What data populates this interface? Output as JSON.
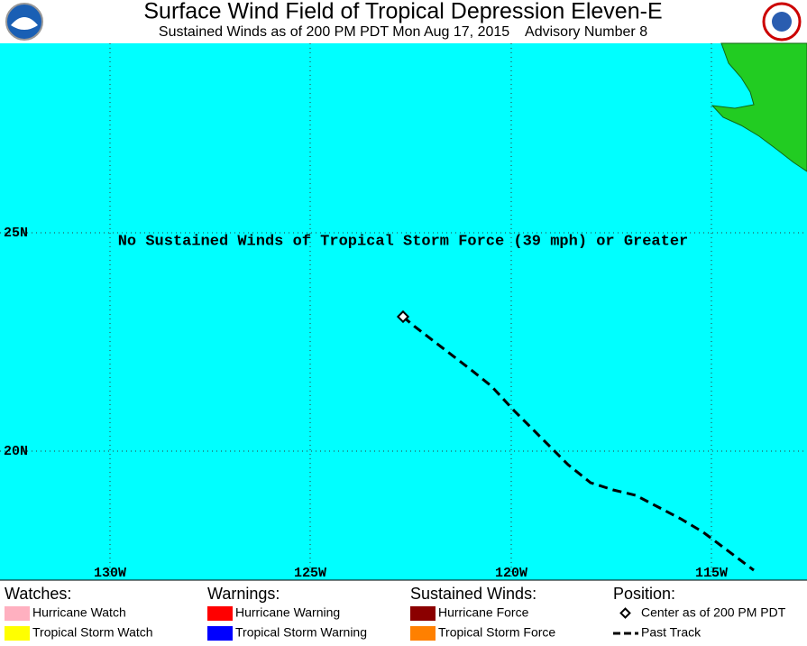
{
  "header": {
    "title": "Surface Wind Field of Tropical Depression Eleven-E",
    "subtitle": "Sustained Winds as of 200 PM PDT Mon Aug 17, 2015    Advisory Number 8"
  },
  "map": {
    "annotation": "No Sustained Winds of Tropical Storm Force (39 mph) or Greater",
    "lon_labels": [
      "130W",
      "125W",
      "120W",
      "115W"
    ],
    "lat_labels": [
      "25N",
      "20N"
    ]
  },
  "legend": [
    {
      "title": "Watches:",
      "items": [
        {
          "label": "Hurricane Watch",
          "color": "#ffb0c0"
        },
        {
          "label": "Tropical Storm Watch",
          "color": "#ffff00"
        }
      ]
    },
    {
      "title": "Warnings:",
      "items": [
        {
          "label": "Hurricane Warning",
          "color": "#ff0000"
        },
        {
          "label": "Tropical Storm Warning",
          "color": "#0000ff"
        }
      ]
    },
    {
      "title": "Sustained Winds:",
      "items": [
        {
          "label": "Hurricane Force",
          "color": "#8b0000"
        },
        {
          "label": "Tropical Storm Force",
          "color": "#ff8000"
        }
      ]
    },
    {
      "title": "Position:",
      "items": [
        {
          "label": "Center as of 200 PM PDT"
        },
        {
          "label": "Past Track"
        }
      ]
    }
  ]
}
